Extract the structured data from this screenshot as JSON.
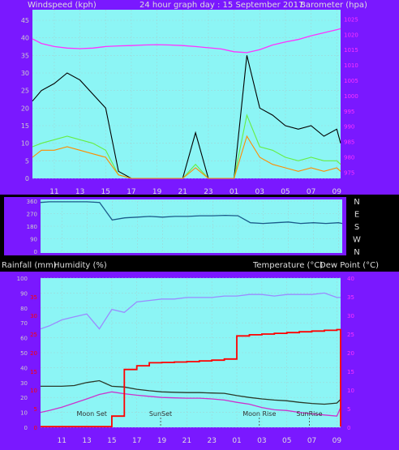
{
  "colors": {
    "background": "#000000",
    "panel": "#7a18ff",
    "plot": "#8cf5f5",
    "grid_text": "#d0d0ff",
    "wind_gust": "#000000",
    "wind_avg": "#66ee44",
    "wind_speed": "#ff8c00",
    "barometer": "#ff33ff",
    "direction": "#1a5a8a",
    "humidity": "#9a8cff",
    "temperature": "#2a3a2a",
    "dew_point": "#cc33cc",
    "rainfall": "#ff0000",
    "tick_text_left": "#cccccc",
    "tick_text_right": "#cc3300"
  },
  "top": {
    "left_title": "Windspeed (kph)",
    "center_title": "24 hour graph day : 15 September 2017",
    "right_title": "Barometer (hpa)"
  },
  "direction_labels": [
    "N",
    "W",
    "S",
    "E",
    "N"
  ],
  "bottom": {
    "left_title_a": "Rainfall (mm)",
    "left_title_b": "Humidity (%)",
    "right_title_a": "Temperature (°C)",
    "right_title_b": "Dew Point (°C)"
  },
  "events": [
    {
      "label": "Moon Set",
      "hour": 13.4,
      "marker": false
    },
    {
      "label": "SunSet",
      "hour": 18.9,
      "marker": true
    },
    {
      "label": "Moon Rise",
      "hour": 2.8,
      "marker": true
    },
    {
      "label": "SunRise",
      "hour": 6.8,
      "marker": true
    }
  ],
  "chart_data": [
    {
      "type": "line",
      "title": "24 hour graph day : 15 September 2017",
      "xlabel": "",
      "x_ticks": [
        "11",
        "13",
        "15",
        "17",
        "19",
        "21",
        "23",
        "01",
        "03",
        "05",
        "07",
        "09"
      ],
      "y_left": {
        "label": "Windspeed (kph)",
        "ticks": [
          0,
          5,
          10,
          15,
          20,
          25,
          30,
          35,
          40,
          45
        ],
        "ylim": [
          0,
          48
        ]
      },
      "y_right": {
        "label": "Barometer (hpa)",
        "ticks": [
          975,
          980,
          985,
          990,
          995,
          1000,
          1005,
          1010,
          1015,
          1020,
          1025
        ],
        "ylim": [
          973,
          1028
        ]
      },
      "x": [
        9.3,
        10,
        11,
        12,
        13,
        14,
        15,
        16,
        17,
        18,
        19,
        20,
        21,
        22,
        23,
        24,
        25,
        26,
        27,
        28,
        29,
        30,
        31,
        32,
        33,
        33.3
      ],
      "series": [
        {
          "name": "Barometer (hpa)",
          "axis": "right",
          "values": [
            1018.5,
            1017,
            1016,
            1015.5,
            1015.3,
            1015.5,
            1016,
            1016.2,
            1016.3,
            1016.5,
            1016.6,
            1016.5,
            1016.3,
            1016,
            1015.6,
            1015.2,
            1014.3,
            1014,
            1015,
            1016.5,
            1017.5,
            1018.3,
            1019.5,
            1020.5,
            1021.5,
            1021.8
          ]
        },
        {
          "name": "Wind gust (kph)",
          "axis": "left",
          "values": [
            22,
            25,
            27,
            30,
            28,
            24,
            20,
            2,
            0,
            0,
            0,
            0,
            0,
            13,
            0,
            0,
            0,
            35,
            20,
            18,
            15,
            14,
            15,
            12,
            14,
            10
          ]
        },
        {
          "name": "Wind average (kph)",
          "axis": "left",
          "values": [
            9,
            10,
            11,
            12,
            11,
            10,
            8,
            1,
            0,
            0,
            0,
            0,
            0,
            4,
            0,
            0,
            0,
            18,
            9,
            8,
            6,
            5,
            6,
            5,
            5,
            4
          ]
        },
        {
          "name": "Wind speed (kph)",
          "axis": "left",
          "values": [
            6,
            8,
            8,
            9,
            8,
            7,
            6,
            1,
            0,
            0,
            0,
            0,
            0,
            3,
            0,
            0,
            0,
            12,
            6,
            4,
            3,
            2,
            3,
            2,
            3,
            2
          ]
        }
      ]
    },
    {
      "type": "line",
      "title": "",
      "y_ticks": [
        0,
        90,
        180,
        270,
        360
      ],
      "y_labels": [
        "N",
        "W",
        "S",
        "E",
        "N"
      ],
      "ylim": [
        0,
        360
      ],
      "x": [
        9.3,
        10,
        11,
        12,
        13,
        14,
        15,
        16,
        17,
        18,
        19,
        20,
        21,
        22,
        23,
        24,
        25,
        26,
        27,
        28,
        29,
        30,
        31,
        32,
        33,
        33.3
      ],
      "series": [
        {
          "name": "Wind direction",
          "values": [
            350,
            355,
            355,
            355,
            355,
            350,
            225,
            240,
            245,
            250,
            245,
            250,
            250,
            255,
            255,
            258,
            255,
            205,
            200,
            205,
            210,
            200,
            205,
            200,
            205,
            200
          ]
        }
      ]
    },
    {
      "type": "line",
      "title": "",
      "x_ticks": [
        "11",
        "13",
        "15",
        "17",
        "19",
        "21",
        "23",
        "01",
        "03",
        "05",
        "07",
        "09"
      ],
      "y_left": {
        "label": "Humidity (%)",
        "ticks": [
          0,
          10,
          20,
          30,
          40,
          50,
          60,
          70,
          80,
          90,
          100
        ],
        "ylim": [
          0,
          100
        ]
      },
      "y_right_temp": {
        "label": "Temperature (°C)",
        "ticks": [
          0,
          5,
          10,
          15,
          20,
          25,
          30,
          35,
          40
        ],
        "ylim": [
          0,
          40
        ]
      },
      "y_right_rain": {
        "label": "Rainfall (mm)",
        "ticks": [
          0,
          5,
          10,
          15,
          20,
          25,
          30,
          35
        ],
        "ylim": [
          0,
          40
        ]
      },
      "x": [
        9.3,
        10,
        11,
        12,
        13,
        14,
        15,
        16,
        17,
        18,
        19,
        20,
        21,
        22,
        23,
        24,
        25,
        26,
        27,
        28,
        29,
        30,
        31,
        32,
        33,
        33.3
      ],
      "series": [
        {
          "name": "Humidity (%)",
          "axis": "left",
          "values": [
            66,
            68,
            72,
            74,
            76,
            66,
            79,
            77,
            84,
            85,
            86,
            86,
            87,
            87,
            87,
            88,
            88,
            89,
            89,
            88,
            89,
            89,
            89,
            90,
            87,
            87
          ]
        },
        {
          "name": "Temperature (°C)",
          "axis": "temp",
          "values": [
            11,
            11,
            11,
            11.2,
            12,
            12.5,
            11,
            10.8,
            10.2,
            9.8,
            9.5,
            9.4,
            9.3,
            9.3,
            9.2,
            9.1,
            8.5,
            8.0,
            7.6,
            7.3,
            7.1,
            6.7,
            6.4,
            6.2,
            6.5,
            7.5
          ]
        },
        {
          "name": "Dew Point (°C)",
          "axis": "temp",
          "values": [
            4.0,
            4.5,
            5.4,
            6.5,
            7.6,
            8.8,
            9.5,
            9.0,
            8.6,
            8.3,
            8.0,
            7.9,
            7.8,
            7.8,
            7.6,
            7.3,
            6.7,
            6.2,
            5.3,
            4.7,
            4.5,
            4.0,
            3.6,
            3.3,
            3.0,
            5.3
          ]
        },
        {
          "name": "Rainfall (mm)",
          "axis": "rain",
          "values": [
            0.2,
            0.2,
            0.2,
            0.2,
            0.2,
            0.2,
            3.0,
            15.5,
            16.5,
            17.3,
            17.4,
            17.5,
            17.6,
            17.8,
            18.0,
            18.3,
            24.5,
            24.8,
            25.0,
            25.2,
            25.4,
            25.6,
            25.8,
            26.0,
            26.2,
            0.2
          ]
        }
      ]
    }
  ]
}
